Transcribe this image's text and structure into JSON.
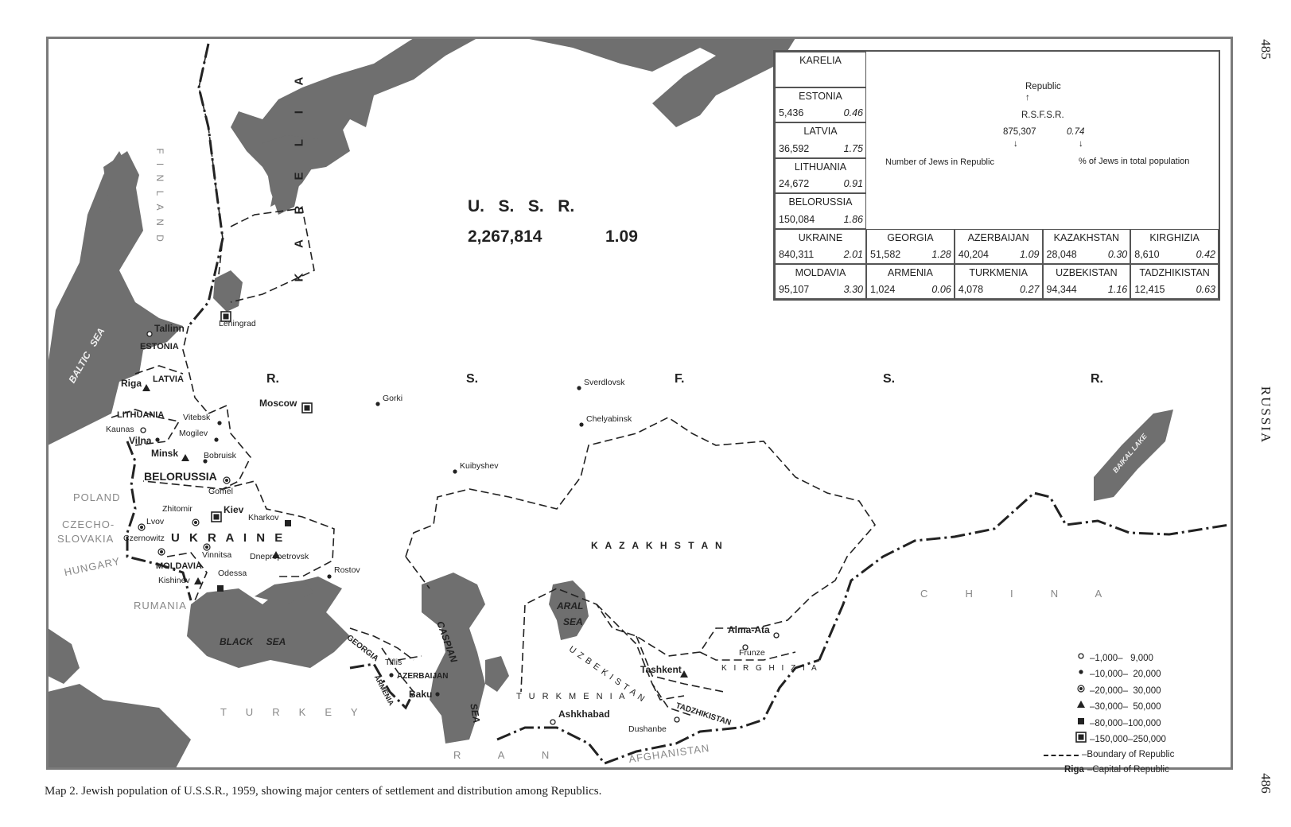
{
  "map": {
    "country_title": "U.   S.   S.   R.",
    "country_total": "2,267,814",
    "country_pct": "1.09",
    "rsfsr_letters": [
      "R.",
      "S.",
      "F.",
      "S.",
      "R."
    ],
    "regions": {
      "finland": "F I N L A N D",
      "karelia": "K A R E L I A",
      "estonia": "ESTONIA",
      "latvia": "LATVIA",
      "lithuania": "LITHUANIA",
      "belorussia": "BELORUSSIA",
      "ukraine": "U K R A I N E",
      "moldavia": "MOLDAVIA",
      "kazakhstan": "K A Z A K H S T A N",
      "turkmenia": "T U R K M E N I A",
      "uzbekistan": "U Z B E K I S T A N",
      "kirghizia": "K I R G H I Z I A",
      "tadzhikistan": "TADZHIKISTAN",
      "georgia": "GEORGIA",
      "armenia": "ARMENIA",
      "azerbaijan": "AZERBAIJAN"
    },
    "foreign": {
      "poland": "POLAND",
      "czechoslovakia_1": "CZECHO-",
      "czechoslovakia_2": "SLOVAKIA",
      "hungary": "HUNGARY",
      "rumania": "RUMANIA",
      "turkey": "T     U     R     K     E     Y",
      "iran": "R          A          N",
      "afghanistan": "AFGHANISTAN",
      "china": "C          H          I          N          A"
    },
    "waters": {
      "baltic": "BALTIC   SEA",
      "black": "BLACK     SEA",
      "caspian": "CASPIAN",
      "caspian_sea": "SEA",
      "aral": "ARAL",
      "aral_sea": "SEA",
      "baikal": "BAIKAL LAKE"
    },
    "cities": [
      {
        "name": "Leningrad",
        "symbol": "large-square"
      },
      {
        "name": "Tallinn",
        "symbol": "open-circle"
      },
      {
        "name": "Riga",
        "symbol": "triangle"
      },
      {
        "name": "Kaunas",
        "symbol": "open-circle"
      },
      {
        "name": "Vilna",
        "symbol": "dot"
      },
      {
        "name": "Vitebsk",
        "symbol": "dot"
      },
      {
        "name": "Mogilev",
        "symbol": "dot"
      },
      {
        "name": "Minsk",
        "symbol": "triangle"
      },
      {
        "name": "Bobruisk",
        "symbol": "dot"
      },
      {
        "name": "Gomel",
        "symbol": "ringed-dot"
      },
      {
        "name": "Zhitomir",
        "symbol": "ringed-dot"
      },
      {
        "name": "Kiev",
        "symbol": "large-square"
      },
      {
        "name": "Lvov",
        "symbol": "ringed-dot"
      },
      {
        "name": "Kharkov",
        "symbol": "square"
      },
      {
        "name": "Czernowitz",
        "symbol": "ringed-dot"
      },
      {
        "name": "Vinnitsa",
        "symbol": "ringed-dot"
      },
      {
        "name": "Dnepropetrovsk",
        "symbol": "triangle"
      },
      {
        "name": "Kishinev",
        "symbol": "triangle"
      },
      {
        "name": "Odessa",
        "symbol": "square"
      },
      {
        "name": "Rostov",
        "symbol": "dot"
      },
      {
        "name": "Moscow",
        "symbol": "large-square"
      },
      {
        "name": "Gorki",
        "symbol": "dot"
      },
      {
        "name": "Sverdlovsk",
        "symbol": "dot"
      },
      {
        "name": "Chelyabinsk",
        "symbol": "dot"
      },
      {
        "name": "Kuibyshev",
        "symbol": "dot"
      },
      {
        "name": "Tiflis",
        "symbol": "dot"
      },
      {
        "name": "Baku",
        "symbol": "dot"
      },
      {
        "name": "Ashkhabad",
        "symbol": "open-circle"
      },
      {
        "name": "Tashkent",
        "symbol": "triangle"
      },
      {
        "name": "Alma-Ata",
        "symbol": "open-circle"
      },
      {
        "name": "Frunze",
        "symbol": "open-circle"
      },
      {
        "name": "Dushanbe",
        "symbol": "open-circle"
      }
    ],
    "colors": {
      "water": "#6f6f6f",
      "land": "#ffffff",
      "boundary": "#222222",
      "frame": "#7a7a7a"
    }
  },
  "table": {
    "key": {
      "republic_label": "Republic",
      "republic": "R.S.F.S.R.",
      "number": "875,307",
      "pct": "0.74",
      "number_label": "Number of Jews in Republic",
      "pct_label": "% of Jews in total population"
    },
    "left_column": [
      {
        "name": "KARELIA",
        "number": "",
        "pct": ""
      },
      {
        "name": "ESTONIA",
        "number": "5,436",
        "pct": "0.46"
      },
      {
        "name": "LATVIA",
        "number": "36,592",
        "pct": "1.75"
      },
      {
        "name": "LITHUANIA",
        "number": "24,672",
        "pct": "0.91"
      },
      {
        "name": "BELORUSSIA",
        "number": "150,084",
        "pct": "1.86"
      }
    ],
    "row1": [
      {
        "name": "UKRAINE",
        "number": "840,311",
        "pct": "2.01"
      },
      {
        "name": "GEORGIA",
        "number": "51,582",
        "pct": "1.28"
      },
      {
        "name": "AZERBAIJAN",
        "number": "40,204",
        "pct": "1.09"
      },
      {
        "name": "KAZAKHSTAN",
        "number": "28,048",
        "pct": "0.30"
      },
      {
        "name": "KIRGHIZIA",
        "number": "8,610",
        "pct": "0.42"
      }
    ],
    "row2": [
      {
        "name": "MOLDAVIA",
        "number": "95,107",
        "pct": "3.30"
      },
      {
        "name": "ARMENIA",
        "number": "1,024",
        "pct": "0.06"
      },
      {
        "name": "TURKMENIA",
        "number": "4,078",
        "pct": "0.27"
      },
      {
        "name": "UZBEKISTAN",
        "number": "94,344",
        "pct": "1.16"
      },
      {
        "name": "TADZHIKISTAN",
        "number": "12,415",
        "pct": "0.63"
      }
    ]
  },
  "legend": {
    "items": [
      {
        "symbol": "open-circle",
        "label": "–1,000–   9,000"
      },
      {
        "symbol": "dot",
        "label": "–10,000–  20,000"
      },
      {
        "symbol": "ringed-dot",
        "label": "–20,000–  30,000"
      },
      {
        "symbol": "triangle",
        "label": "–30,000–  50,000"
      },
      {
        "symbol": "square",
        "label": "–80,000–100,000"
      },
      {
        "symbol": "large-square",
        "label": "–150,000–250,000"
      }
    ],
    "boundary_label": "–Boundary of Republic",
    "capital_example": "Riga",
    "capital_label": "–Capital  of  Republic"
  },
  "page": {
    "caption": "Map 2. Jewish population of U.S.S.R., 1959, showing major centers of settlement and distribution among Republics.",
    "page_top": "485",
    "page_bottom": "486",
    "running_head": "RUSSIA"
  }
}
